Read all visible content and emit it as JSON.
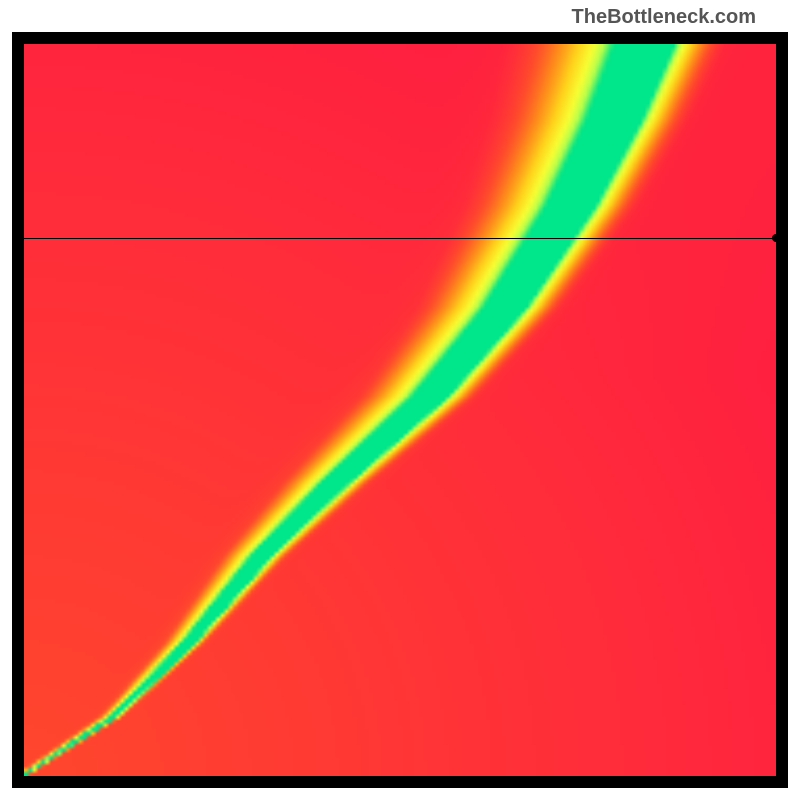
{
  "watermark": "TheBottleneck.com",
  "plot": {
    "type": "heatmap",
    "background_color": "#ffffff",
    "frame_color": "#000000",
    "frame_inset": 12,
    "grid_resolution": 180,
    "xlim": [
      0,
      1
    ],
    "ylim": [
      0,
      1
    ],
    "color_stops": [
      {
        "t": 0.0,
        "hex": "#ff1744"
      },
      {
        "t": 0.18,
        "hex": "#ff4b2b"
      },
      {
        "t": 0.35,
        "hex": "#ff8c1a"
      },
      {
        "t": 0.55,
        "hex": "#ffd11a"
      },
      {
        "t": 0.75,
        "hex": "#f7ff33"
      },
      {
        "t": 0.88,
        "hex": "#b6ff4d"
      },
      {
        "t": 1.0,
        "hex": "#00e68a"
      }
    ],
    "ridge": {
      "control_points": [
        {
          "x": 0.0,
          "y": 0.0
        },
        {
          "x": 0.12,
          "y": 0.08
        },
        {
          "x": 0.22,
          "y": 0.18
        },
        {
          "x": 0.32,
          "y": 0.3
        },
        {
          "x": 0.42,
          "y": 0.4
        },
        {
          "x": 0.55,
          "y": 0.52
        },
        {
          "x": 0.65,
          "y": 0.64
        },
        {
          "x": 0.74,
          "y": 0.78
        },
        {
          "x": 0.8,
          "y": 0.9
        },
        {
          "x": 0.84,
          "y": 1.0
        }
      ],
      "width_profile": [
        {
          "y": 0.0,
          "w": 0.006
        },
        {
          "y": 0.1,
          "w": 0.012
        },
        {
          "y": 0.3,
          "w": 0.03
        },
        {
          "y": 0.5,
          "w": 0.05
        },
        {
          "y": 0.7,
          "w": 0.065
        },
        {
          "y": 1.0,
          "w": 0.085
        }
      ],
      "asymmetry": {
        "right_falloff": 0.6,
        "left_falloff": 1.25
      }
    },
    "reference_line": {
      "y": 0.735,
      "line_color": "#000000",
      "line_width": 1,
      "marker_x": 1.0,
      "marker_radius": 4
    }
  }
}
